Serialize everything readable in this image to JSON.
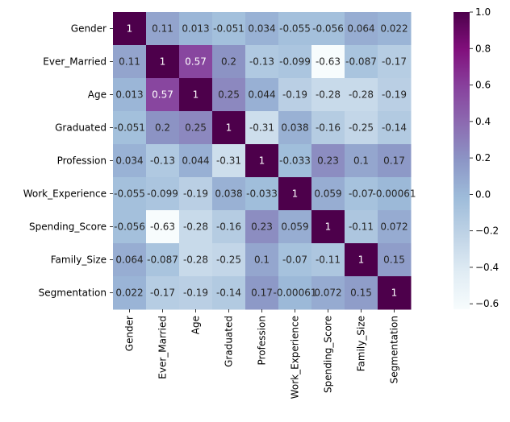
{
  "chart_data": {
    "type": "heatmap",
    "title": "",
    "xlabel": "",
    "ylabel": "",
    "labels": [
      "Gender",
      "Ever_Married",
      "Age",
      "Graduated",
      "Profession",
      "Work_Experience",
      "Spending_Score",
      "Family_Size",
      "Segmentation"
    ],
    "values": [
      [
        1,
        0.11,
        0.013,
        -0.051,
        0.034,
        -0.055,
        -0.056,
        0.064,
        0.022
      ],
      [
        0.11,
        1,
        0.57,
        0.2,
        -0.13,
        -0.099,
        -0.63,
        -0.087,
        -0.17
      ],
      [
        0.013,
        0.57,
        1,
        0.25,
        0.044,
        -0.19,
        -0.28,
        -0.28,
        -0.19
      ],
      [
        -0.051,
        0.2,
        0.25,
        1,
        -0.31,
        0.038,
        -0.16,
        -0.25,
        -0.14
      ],
      [
        0.034,
        -0.13,
        0.044,
        -0.31,
        1,
        -0.033,
        0.23,
        0.1,
        0.17
      ],
      [
        -0.055,
        -0.099,
        -0.19,
        0.038,
        -0.033,
        1,
        0.059,
        -0.07,
        -0.00061
      ],
      [
        -0.056,
        -0.63,
        -0.28,
        -0.16,
        0.23,
        0.059,
        1,
        -0.11,
        0.072
      ],
      [
        0.064,
        -0.087,
        -0.28,
        -0.25,
        0.1,
        -0.07,
        -0.11,
        1,
        0.15
      ],
      [
        0.022,
        -0.17,
        -0.19,
        -0.14,
        0.17,
        -0.00061,
        0.072,
        0.15,
        1
      ]
    ],
    "cell_labels": [
      [
        "1",
        "0.11",
        "0.013",
        "-0.051",
        "0.034",
        "-0.055",
        "-0.056",
        "0.064",
        "0.022"
      ],
      [
        "0.11",
        "1",
        "0.57",
        "0.2",
        "-0.13",
        "-0.099",
        "-0.63",
        "-0.087",
        "-0.17"
      ],
      [
        "0.013",
        "0.57",
        "1",
        "0.25",
        "0.044",
        "-0.19",
        "-0.28",
        "-0.28",
        "-0.19"
      ],
      [
        "-0.051",
        "0.2",
        "0.25",
        "1",
        "-0.31",
        "0.038",
        "-0.16",
        "-0.25",
        "-0.14"
      ],
      [
        "0.034",
        "-0.13",
        "0.044",
        "-0.31",
        "1",
        "-0.033",
        "0.23",
        "0.1",
        "0.17"
      ],
      [
        "-0.055",
        "-0.099",
        "-0.19",
        "0.038",
        "-0.033",
        "1",
        "0.059",
        "-0.07",
        "-0.00061"
      ],
      [
        "-0.056",
        "-0.63",
        "-0.28",
        "-0.16",
        "0.23",
        "0.059",
        "1",
        "-0.11",
        "0.072"
      ],
      [
        "0.064",
        "-0.087",
        "-0.28",
        "-0.25",
        "0.1",
        "-0.07",
        "-0.11",
        "1",
        "0.15"
      ],
      [
        "0.022",
        "-0.17",
        "-0.19",
        "-0.14",
        "0.17",
        "-0.00061",
        "0.072",
        "0.15",
        "1"
      ]
    ],
    "colormap": "BuPu",
    "colormap_stops": [
      "#f7fcfd",
      "#e0ecf4",
      "#bfd3e6",
      "#9ebcda",
      "#8c96c6",
      "#8c6bb1",
      "#88419d",
      "#810f7c",
      "#4d004b"
    ],
    "vmin": -0.63,
    "vmax": 1.0,
    "colorbar": {
      "ticks": [
        1.0,
        0.8,
        0.6,
        0.4,
        0.2,
        0.0,
        -0.2,
        -0.4,
        -0.6
      ],
      "tick_labels": [
        "1.0",
        "0.8",
        "0.6",
        "0.4",
        "0.2",
        "0.0",
        "−0.2",
        "−0.4",
        "−0.6"
      ],
      "placement": "right"
    },
    "grid": false,
    "legend": "none"
  }
}
